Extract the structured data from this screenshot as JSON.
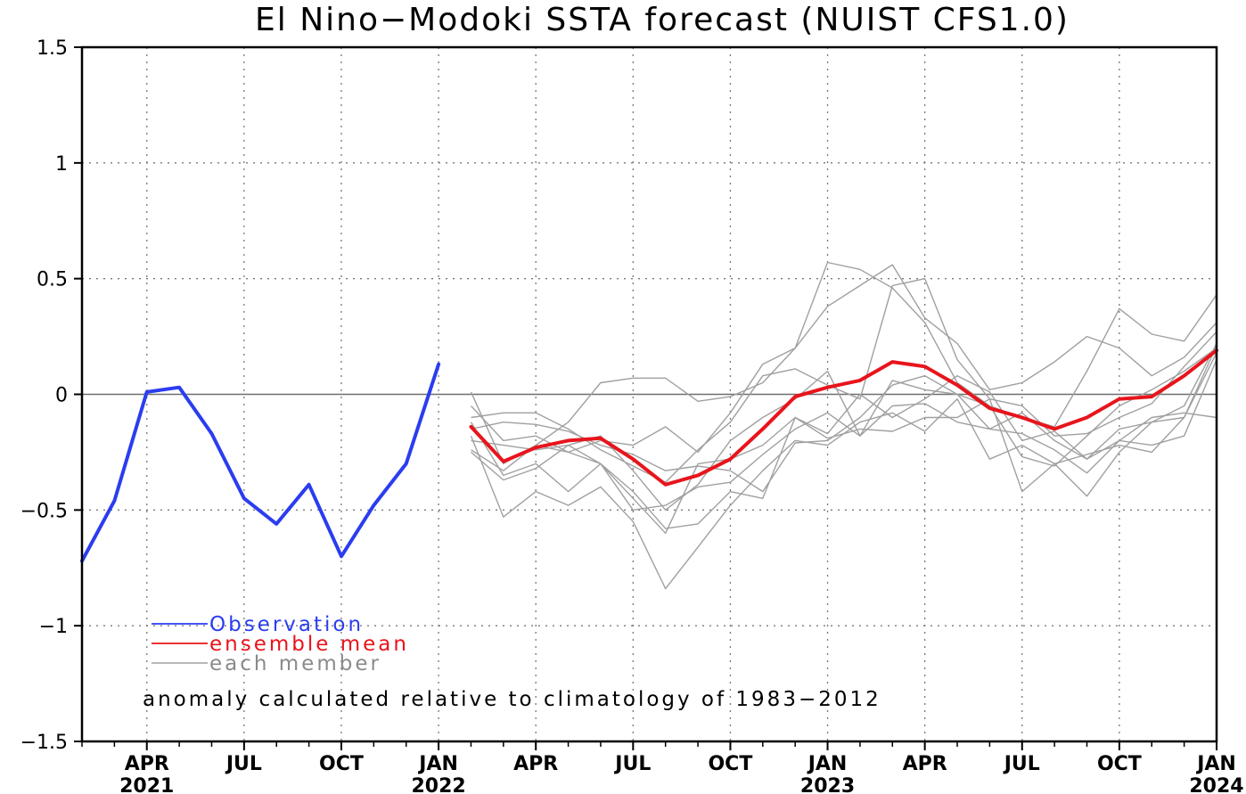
{
  "chart_data": {
    "type": "line",
    "title": "El Nino−Modoki SSTA forecast (NUIST CFS1.0)",
    "xlabel": "",
    "ylabel": "",
    "ylim": [
      -1.5,
      1.5
    ],
    "yticks": [
      1.5,
      1,
      0.5,
      0,
      -0.5,
      -1,
      -1.5
    ],
    "ytick_labels": [
      "1.5",
      "1",
      "0.5",
      "0",
      "−0.5",
      "−1",
      "−1.5"
    ],
    "xlim": [
      "2021-02",
      "2024-01"
    ],
    "grid": true,
    "x_ticks": [
      {
        "month": "2021-04",
        "label": "APR",
        "year": "2021"
      },
      {
        "month": "2021-07",
        "label": "JUL",
        "year": ""
      },
      {
        "month": "2021-10",
        "label": "OCT",
        "year": ""
      },
      {
        "month": "2022-01",
        "label": "JAN",
        "year": "2022"
      },
      {
        "month": "2022-04",
        "label": "APR",
        "year": ""
      },
      {
        "month": "2022-07",
        "label": "JUL",
        "year": ""
      },
      {
        "month": "2022-10",
        "label": "OCT",
        "year": ""
      },
      {
        "month": "2023-01",
        "label": "JAN",
        "year": "2023"
      },
      {
        "month": "2023-04",
        "label": "APR",
        "year": ""
      },
      {
        "month": "2023-07",
        "label": "JUL",
        "year": ""
      },
      {
        "month": "2023-10",
        "label": "OCT",
        "year": ""
      },
      {
        "month": "2024-01",
        "label": "JAN",
        "year": "2024"
      }
    ],
    "series": [
      {
        "name": "Observation",
        "color": "#2b3df0",
        "x": [
          "2021-02",
          "2021-03",
          "2021-04",
          "2021-05",
          "2021-06",
          "2021-07",
          "2021-08",
          "2021-09",
          "2021-10",
          "2021-11",
          "2021-12",
          "2022-01"
        ],
        "values": [
          -0.72,
          -0.46,
          0.01,
          0.03,
          -0.17,
          -0.45,
          -0.56,
          -0.39,
          -0.7,
          -0.48,
          -0.3,
          0.13
        ]
      },
      {
        "name": "ensemble mean",
        "color": "#e8141c",
        "x": [
          "2022-02",
          "2022-03",
          "2022-04",
          "2022-05",
          "2022-06",
          "2022-07",
          "2022-08",
          "2022-09",
          "2022-10",
          "2022-11",
          "2022-12",
          "2023-01",
          "2023-02",
          "2023-03",
          "2023-04",
          "2023-05",
          "2023-06",
          "2023-07",
          "2023-08",
          "2023-09",
          "2023-10",
          "2023-11",
          "2023-12",
          "2024-01"
        ],
        "values": [
          -0.14,
          -0.29,
          -0.23,
          -0.2,
          -0.19,
          -0.28,
          -0.39,
          -0.35,
          -0.28,
          -0.15,
          -0.01,
          0.03,
          0.06,
          0.14,
          0.12,
          0.04,
          -0.06,
          -0.1,
          -0.15,
          -0.1,
          -0.02,
          -0.01,
          0.08,
          0.19
        ]
      }
    ],
    "members": {
      "name": "each member",
      "color": "#a0a0a0",
      "x": [
        "2022-02",
        "2022-03",
        "2022-04",
        "2022-05",
        "2022-06",
        "2022-07",
        "2022-08",
        "2022-09",
        "2022-10",
        "2022-11",
        "2022-12",
        "2023-01",
        "2023-02",
        "2023-03",
        "2023-04",
        "2023-05",
        "2023-06",
        "2023-07",
        "2023-08",
        "2023-09",
        "2023-10",
        "2023-11",
        "2023-12",
        "2024-01"
      ],
      "values": [
        [
          0.01,
          -0.3,
          -0.22,
          -0.12,
          0.05,
          0.07,
          0.07,
          -0.03,
          -0.01,
          0.05,
          0.2,
          0.57,
          0.54,
          0.46,
          0.31,
          0.05,
          -0.05,
          -0.1,
          -0.14,
          0.1,
          0.37,
          0.26,
          0.23,
          0.43
        ],
        [
          -0.05,
          -0.2,
          -0.18,
          -0.25,
          -0.2,
          -0.22,
          -0.14,
          -0.25,
          -0.08,
          0.13,
          0.2,
          0.38,
          0.47,
          0.56,
          0.33,
          0.22,
          0.02,
          0.05,
          0.14,
          0.25,
          0.2,
          0.08,
          0.16,
          0.31
        ],
        [
          -0.1,
          -0.08,
          -0.08,
          -0.15,
          -0.24,
          -0.31,
          -0.38,
          -0.24,
          -0.12,
          0.08,
          0.11,
          0.04,
          -0.02,
          0.47,
          0.5,
          0.15,
          -0.02,
          -0.05,
          -0.18,
          -0.17,
          -0.1,
          -0.04,
          0.12,
          0.27
        ],
        [
          -0.15,
          -0.12,
          -0.13,
          -0.16,
          -0.22,
          -0.26,
          -0.33,
          -0.31,
          -0.33,
          -0.42,
          -0.21,
          -0.2,
          -0.1,
          0.04,
          0.08,
          0.0,
          -0.05,
          -0.27,
          -0.31,
          -0.18,
          -0.05,
          0.02,
          0.1,
          0.2
        ],
        [
          -0.2,
          -0.22,
          -0.24,
          -0.22,
          -0.18,
          -0.33,
          -0.5,
          -0.39,
          -0.2,
          -0.1,
          -0.02,
          0.1,
          -0.18,
          0.06,
          0.02,
          0.0,
          -0.15,
          -0.17,
          -0.24,
          -0.34,
          -0.2,
          -0.1,
          -0.08,
          -0.1
        ],
        [
          -0.24,
          -0.33,
          -0.22,
          -0.25,
          -0.3,
          -0.45,
          -0.6,
          -0.3,
          -0.28,
          -0.22,
          -0.1,
          -0.19,
          -0.15,
          -0.16,
          -0.1,
          -0.1,
          -0.02,
          -0.42,
          -0.3,
          -0.44,
          -0.25,
          -0.12,
          -0.1,
          0.18
        ],
        [
          -0.25,
          -0.37,
          -0.32,
          -0.22,
          -0.3,
          -0.5,
          -0.48,
          -0.4,
          -0.38,
          -0.26,
          -0.15,
          -0.08,
          -0.18,
          -0.05,
          -0.04,
          -0.12,
          -0.15,
          -0.08,
          -0.2,
          -0.28,
          -0.2,
          -0.22,
          -0.18,
          0.15
        ],
        [
          -0.18,
          -0.53,
          -0.42,
          -0.48,
          -0.4,
          -0.55,
          -0.84,
          -0.66,
          -0.48,
          -0.33,
          -0.2,
          -0.22,
          -0.12,
          -0.08,
          -0.16,
          -0.02,
          -0.28,
          -0.22,
          -0.3,
          -0.26,
          -0.22,
          -0.25,
          -0.1,
          0.21
        ],
        [
          -0.12,
          -0.35,
          -0.3,
          -0.42,
          -0.3,
          -0.42,
          -0.58,
          -0.56,
          -0.42,
          -0.45,
          -0.1,
          -0.17,
          0.0,
          -0.1,
          -0.02,
          0.08,
          0.01,
          -0.2,
          -0.16,
          -0.28,
          -0.15,
          -0.12,
          -0.05,
          0.22
        ]
      ]
    },
    "legend": [
      "Observation",
      "ensemble mean",
      "each member"
    ],
    "legend_position": "lower-left",
    "annotation": "anomaly calculated relative to climatology of 1983−2012"
  }
}
